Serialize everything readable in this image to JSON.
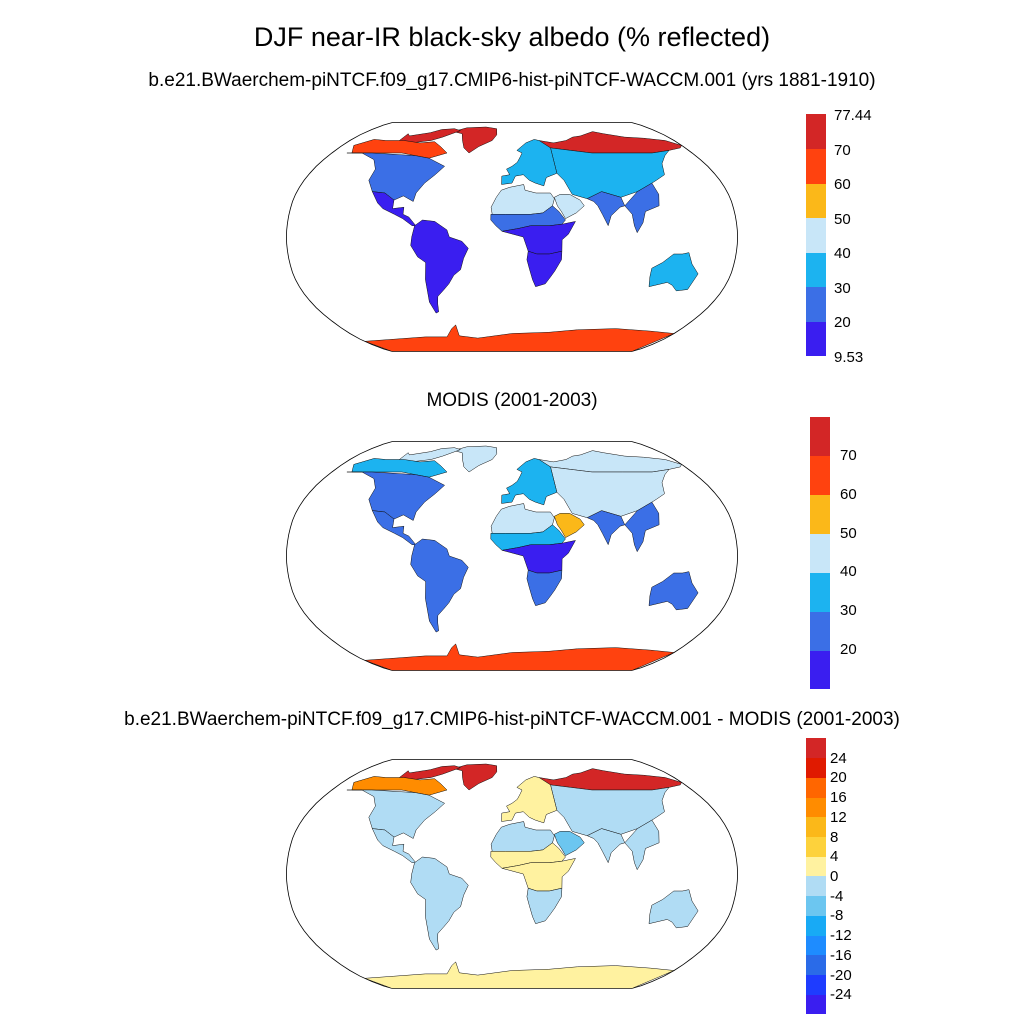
{
  "page": {
    "title": "DJF near-IR black-sky albedo (% reflected)"
  },
  "panels": [
    {
      "title": "b.e21.BWaerchem-piNTCF.f09_g17.CMIP6-hist-piNTCF-WACCM.001 (yrs 1881-1910)",
      "colorbar": {
        "colors": [
          "#3a1ef0",
          "#3b6fe6",
          "#1cb3f0",
          "#c8e6f8",
          "#fbb819",
          "#ff420f",
          "#d32626"
        ],
        "labels": [
          "9.53",
          "20",
          "30",
          "40",
          "50",
          "60",
          "70",
          "77.44"
        ]
      }
    },
    {
      "title": "MODIS (2001-2003)",
      "colorbar": {
        "colors": [
          "#3a1ef0",
          "#3b6fe6",
          "#1cb3f0",
          "#c8e6f8",
          "#fbb819",
          "#ff420f",
          "#d32626"
        ],
        "labels": [
          "",
          "20",
          "30",
          "40",
          "50",
          "60",
          "70",
          ""
        ]
      }
    },
    {
      "title": "b.e21.BWaerchem-piNTCF.f09_g17.CMIP6-hist-piNTCF-WACCM.001 - MODIS (2001-2003)",
      "colorbar": {
        "colors": [
          "#3a1ef0",
          "#1e3cff",
          "#2a6be8",
          "#1e8cff",
          "#18aaf5",
          "#6cc6f0",
          "#b0dcf4",
          "#fff2a0",
          "#fdd23c",
          "#fbb819",
          "#ff8c00",
          "#ff6600",
          "#e01a00",
          "#d32626"
        ],
        "labels": [
          "",
          "-24",
          "-20",
          "-16",
          "-12",
          "-8",
          "-4",
          "0",
          "4",
          "8",
          "12",
          "16",
          "20",
          "24",
          ""
        ]
      }
    }
  ],
  "chart_data": [
    {
      "type": "heatmap",
      "title": "b.e21.BWaerchem-piNTCF.f09_g17.CMIP6-hist-piNTCF-WACCM.001 (yrs 1881-1910)",
      "projection": "Robinson",
      "variable": "DJF near-IR black-sky albedo (% reflected)",
      "colorbar_levels": [
        20,
        30,
        40,
        50,
        60,
        70
      ],
      "colorbar_range": [
        9.53,
        77.44
      ],
      "regions": [
        {
          "region": "Antarctica",
          "value": 65
        },
        {
          "region": "Greenland",
          "value": 75
        },
        {
          "region": "Canadian Arctic",
          "value": 72
        },
        {
          "region": "North Canada",
          "value": 60
        },
        {
          "region": "USA",
          "value": 22
        },
        {
          "region": "Central America",
          "value": 15
        },
        {
          "region": "South America",
          "value": 12
        },
        {
          "region": "Sahara",
          "value": 42
        },
        {
          "region": "Sahel",
          "value": 28
        },
        {
          "region": "Central Africa",
          "value": 14
        },
        {
          "region": "Southern Africa",
          "value": 15
        },
        {
          "region": "Arabia",
          "value": 45
        },
        {
          "region": "Siberia north",
          "value": 72
        },
        {
          "region": "Eurasia mid",
          "value": 35
        },
        {
          "region": "Europe",
          "value": 30
        },
        {
          "region": "South Asia",
          "value": 22
        },
        {
          "region": "SE Asia",
          "value": 25
        },
        {
          "region": "Australia",
          "value": 30
        }
      ]
    },
    {
      "type": "heatmap",
      "title": "MODIS (2001-2003)",
      "projection": "Robinson",
      "colorbar_levels": [
        20,
        30,
        40,
        50,
        60,
        70
      ],
      "regions": [
        {
          "region": "Antarctica",
          "value": 65
        },
        {
          "region": "Greenland",
          "value": 42
        },
        {
          "region": "Canadian Arctic",
          "value": 42
        },
        {
          "region": "North Canada",
          "value": 32
        },
        {
          "region": "USA",
          "value": 25
        },
        {
          "region": "Central America",
          "value": 22
        },
        {
          "region": "South America",
          "value": 24
        },
        {
          "region": "Sahara",
          "value": 48
        },
        {
          "region": "Sahel",
          "value": 32
        },
        {
          "region": "Central Africa",
          "value": 16
        },
        {
          "region": "Southern Africa",
          "value": 24
        },
        {
          "region": "Arabia",
          "value": 52
        },
        {
          "region": "Siberia north",
          "value": 45
        },
        {
          "region": "Eurasia mid",
          "value": 40
        },
        {
          "region": "Europe",
          "value": 32
        },
        {
          "region": "South Asia",
          "value": 28
        },
        {
          "region": "SE Asia",
          "value": 25
        },
        {
          "region": "Australia",
          "value": 28
        }
      ]
    },
    {
      "type": "heatmap",
      "title": "b.e21.BWaerchem-piNTCF.f09_g17.CMIP6-hist-piNTCF-WACCM.001 - MODIS (2001-2003)",
      "projection": "Robinson",
      "colorbar_levels": [
        -24,
        -20,
        -16,
        -12,
        -8,
        -4,
        0,
        4,
        8,
        12,
        16,
        20,
        24
      ],
      "regions": [
        {
          "region": "Antarctica",
          "value": 2
        },
        {
          "region": "Greenland",
          "value": 30
        },
        {
          "region": "Canadian Arctic",
          "value": 26
        },
        {
          "region": "North Canada",
          "value": 14
        },
        {
          "region": "USA",
          "value": -3
        },
        {
          "region": "Central America",
          "value": -3
        },
        {
          "region": "South America",
          "value": -3
        },
        {
          "region": "Sahara",
          "value": -4
        },
        {
          "region": "Sahel",
          "value": 2
        },
        {
          "region": "Central Africa",
          "value": 2
        },
        {
          "region": "Southern Africa",
          "value": -4
        },
        {
          "region": "Arabia",
          "value": -6
        },
        {
          "region": "Siberia north",
          "value": 26
        },
        {
          "region": "Eurasia mid",
          "value": -3
        },
        {
          "region": "Europe",
          "value": 2
        },
        {
          "region": "South Asia",
          "value": -3
        },
        {
          "region": "SE Asia",
          "value": -2
        },
        {
          "region": "Australia",
          "value": -3
        }
      ]
    }
  ]
}
